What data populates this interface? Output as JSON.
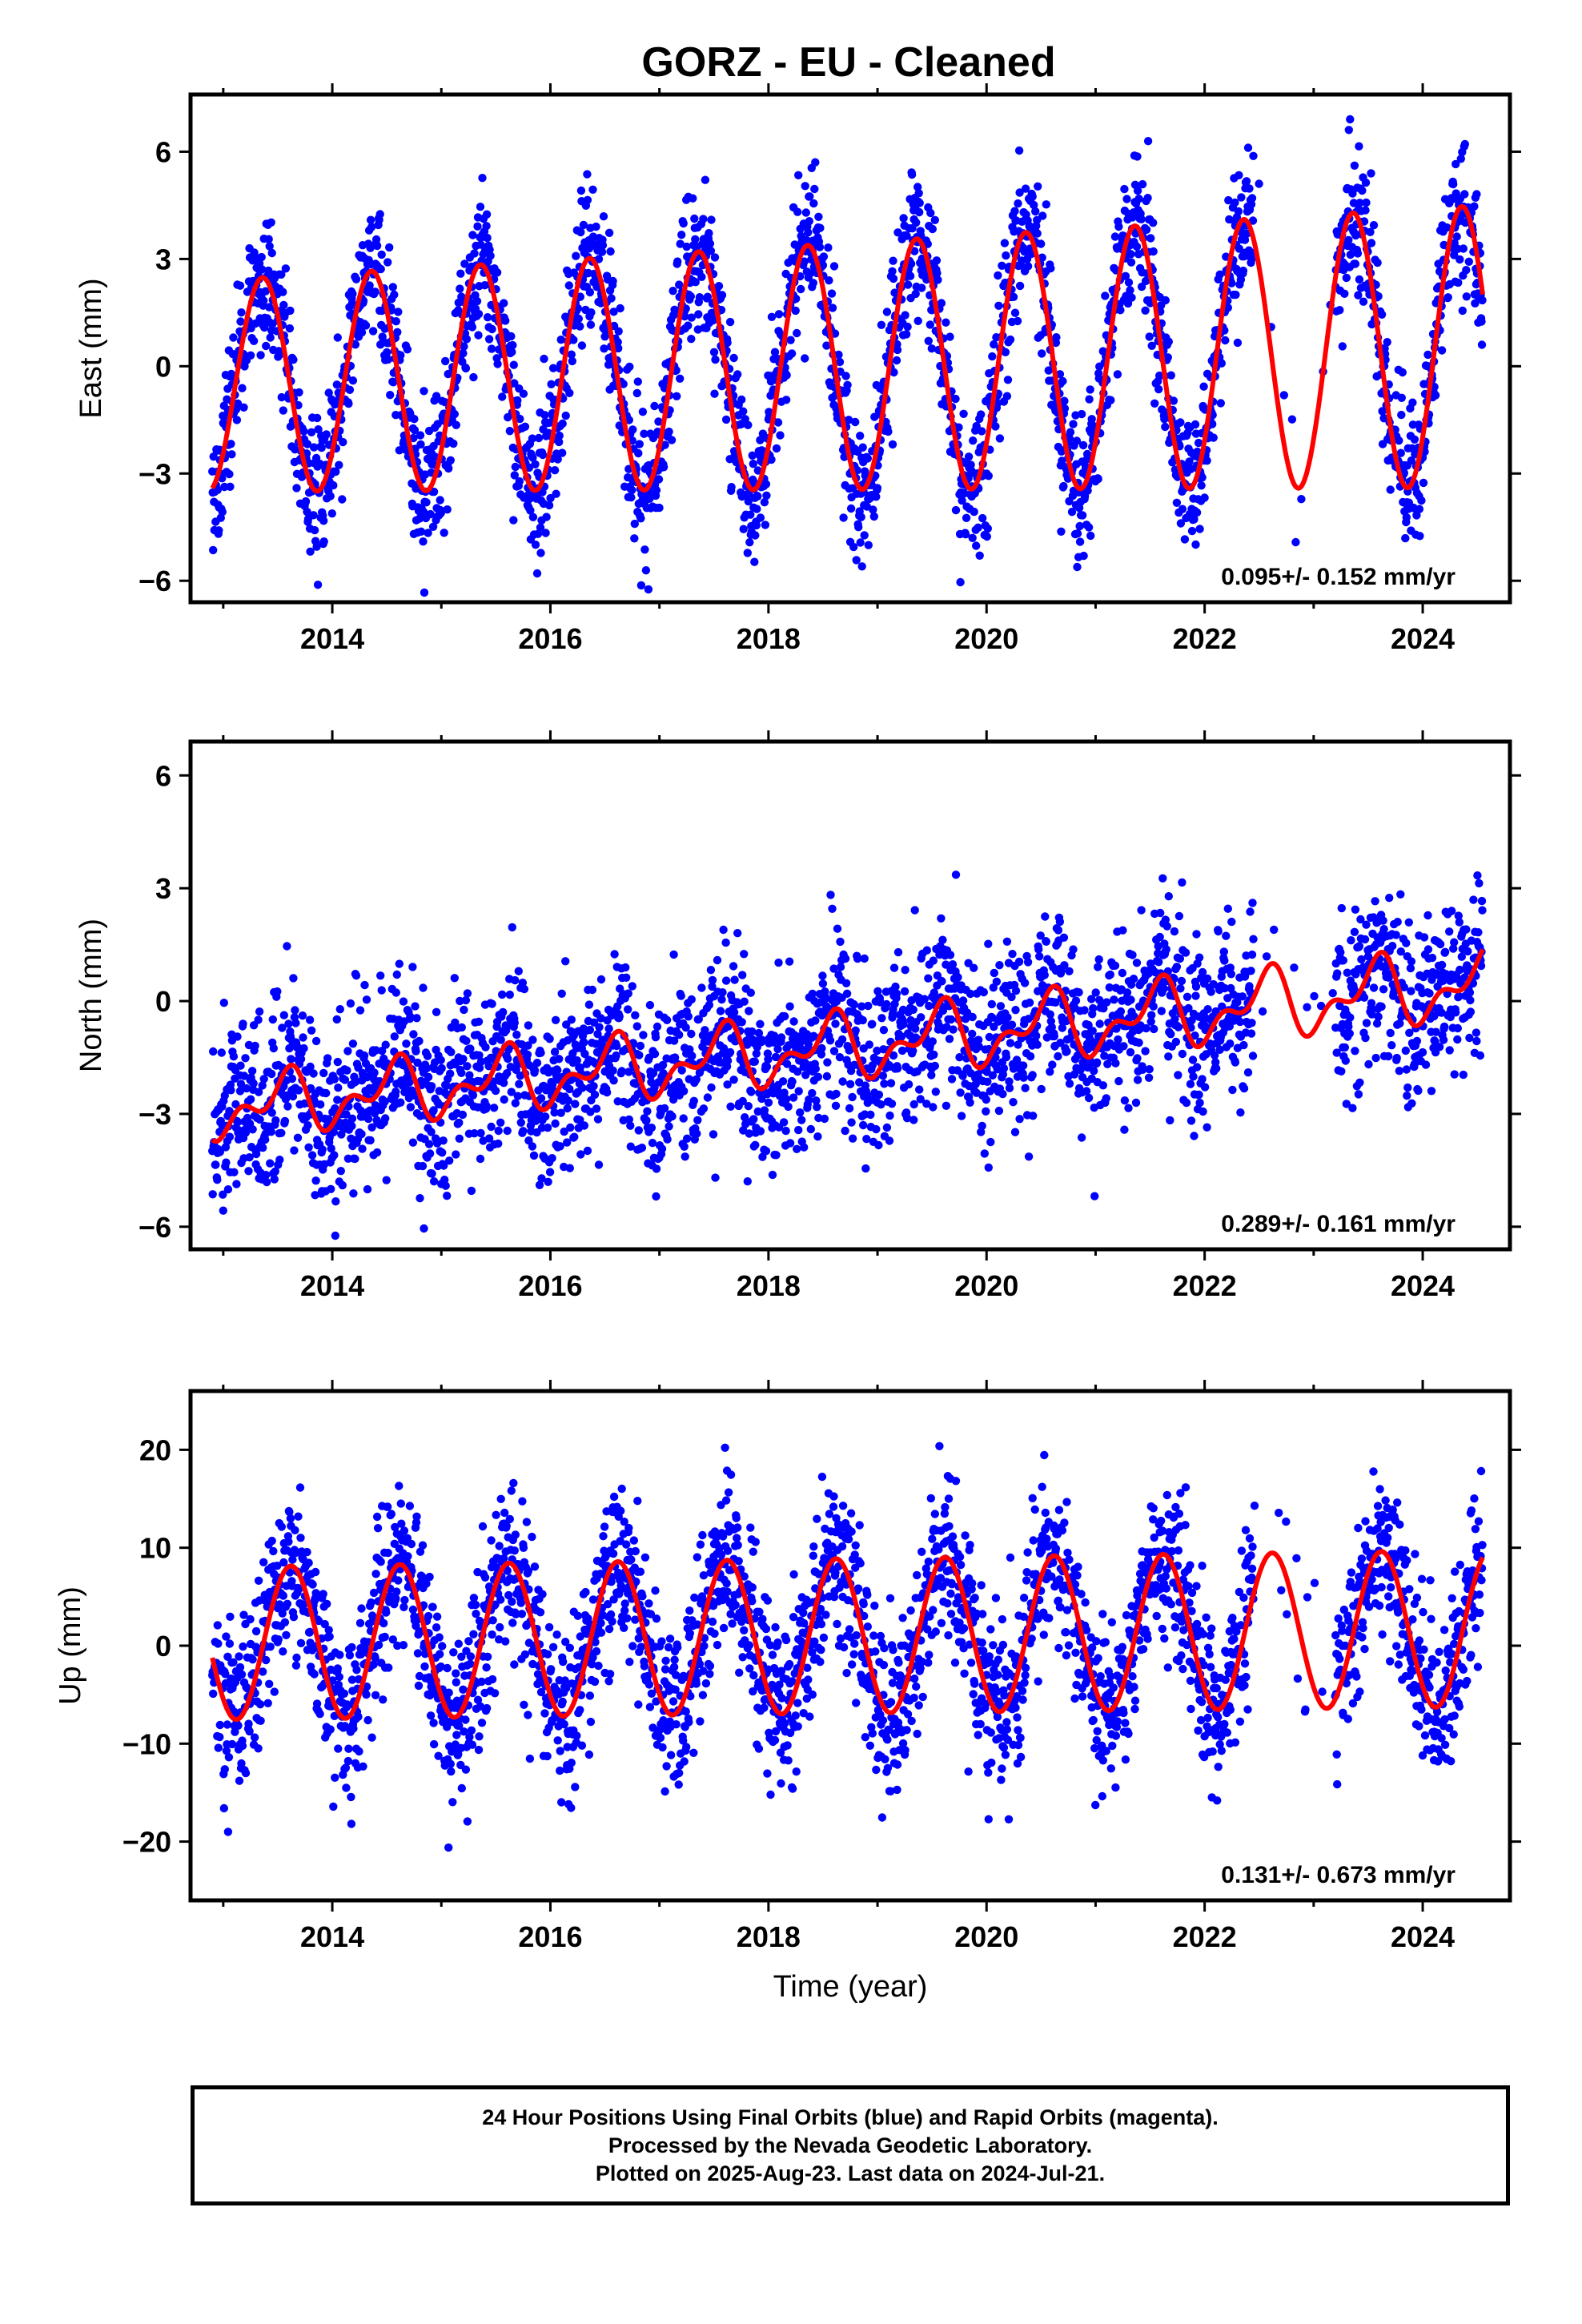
{
  "title": "GORZ  - EU - Cleaned",
  "colors": {
    "points": "#0000ff",
    "fit": "#ff0000",
    "axis": "#000000"
  },
  "footer": {
    "line1": "24 Hour Positions Using Final Orbits (blue) and Rapid Orbits (magenta).",
    "line2": "Processed by the Nevada Geodetic Laboratory.",
    "line3": "Plotted on 2025-Aug-23. Last data on 2024-Jul-21."
  },
  "chart_data": [
    {
      "type": "scatter",
      "ylabel": "East (mm)",
      "xlabel": "",
      "xlim": [
        2012.7,
        2024.8
      ],
      "ylim": [
        -6.6,
        7.6
      ],
      "x_ticks": [
        2014,
        2016,
        2018,
        2020,
        2022,
        2024
      ],
      "x_tick_labels": [
        "2014",
        "2016",
        "2018",
        "2020",
        "2022",
        "2024"
      ],
      "y_ticks": [
        -6,
        -3,
        0,
        3,
        6
      ],
      "y_tick_labels": [
        "−6",
        "−3",
        "0",
        "3",
        "6"
      ],
      "rate_label": "0.095+/- 0.152 mm/yr",
      "data_span": [
        2012.9,
        2024.55
      ],
      "gaps": [
        [
          2022.45,
          2023.2
        ]
      ],
      "series": [
        {
          "kind": "fit",
          "offset": 0.0,
          "trend": 0.095,
          "amplitude": [
            2.95,
            3.95
          ],
          "phase_peak": 0.36,
          "ripple": 0.0
        },
        {
          "kind": "points",
          "scatter_sd": 1.05
        }
      ]
    },
    {
      "type": "scatter",
      "ylabel": "North (mm)",
      "xlabel": "",
      "xlim": [
        2012.7,
        2024.8
      ],
      "ylim": [
        -6.6,
        6.9
      ],
      "x_ticks": [
        2014,
        2016,
        2018,
        2020,
        2022,
        2024
      ],
      "x_tick_labels": [
        "2014",
        "2016",
        "2018",
        "2020",
        "2022",
        "2024"
      ],
      "y_ticks": [
        -6,
        -3,
        0,
        3,
        6
      ],
      "y_tick_labels": [
        "−6",
        "−3",
        "0",
        "3",
        "6"
      ],
      "rate_label": "0.289+/- 0.161 mm/yr",
      "data_span": [
        2012.9,
        2024.55
      ],
      "gaps": [
        [
          2022.45,
          2023.2
        ]
      ],
      "series": [
        {
          "kind": "fit",
          "offset": -1.2,
          "trend": 0.289,
          "amplitude": [
            0.6,
            0.75
          ],
          "phase_peak": 0.55,
          "ripple": 0.45
        },
        {
          "kind": "points",
          "scatter_sd": 1.15
        }
      ]
    },
    {
      "type": "scatter",
      "ylabel": "Up (mm)",
      "xlabel": "Time (year)",
      "xlim": [
        2012.7,
        2024.8
      ],
      "ylim": [
        -26,
        26
      ],
      "x_ticks": [
        2014,
        2016,
        2018,
        2020,
        2022,
        2024
      ],
      "x_tick_labels": [
        "2014",
        "2016",
        "2018",
        "2020",
        "2022",
        "2024"
      ],
      "y_ticks": [
        -20,
        -10,
        0,
        10,
        20
      ],
      "y_tick_labels": [
        "−20",
        "−10",
        "0",
        "10",
        "20"
      ],
      "rate_label": "0.131+/- 0.673 mm/yr",
      "data_span": [
        2012.9,
        2024.55
      ],
      "gaps": [
        [
          2022.45,
          2023.2
        ]
      ],
      "series": [
        {
          "kind": "fit",
          "offset": 1.0,
          "trend": 0.131,
          "amplitude": [
            7.8,
            8.0
          ],
          "phase_peak": 0.62,
          "ripple": 0.0
        },
        {
          "kind": "points",
          "scatter_sd": 4.3
        }
      ]
    }
  ]
}
